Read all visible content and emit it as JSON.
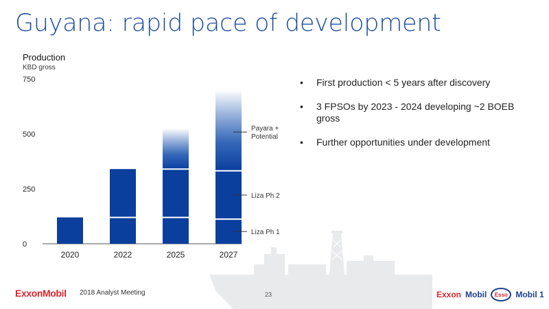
{
  "slide": {
    "title": "Guyana: rapid pace of development",
    "bullets": [
      "First production < 5 years after discovery",
      "3 FPSOs by 2023 - 2024 developing ~2 BOEB gross",
      "Further opportunities under development"
    ],
    "footer": {
      "logo": "ExxonMobil",
      "event": "2018 Analyst Meeting",
      "page": "23"
    },
    "brands": [
      "Exxon",
      "Mobil",
      "Esso",
      "Mobil 1"
    ]
  },
  "colors": {
    "title": "#1d4da0",
    "bar": "#0b3f9e",
    "red": "#d8262e"
  },
  "chart_data": {
    "type": "bar",
    "stacked": true,
    "ylabel": "Production",
    "yunit": "KBD gross",
    "ylim": [
      0,
      750
    ],
    "yticks": [
      0,
      250,
      500,
      750
    ],
    "categories": [
      "2020",
      "2022",
      "2025",
      "2027"
    ],
    "series": [
      {
        "name": "Liza Ph 1",
        "values": [
          120,
          120,
          120,
          112
        ]
      },
      {
        "name": "Liza Ph 2",
        "values": [
          0,
          220,
          220,
          220
        ]
      },
      {
        "name": "Payara + Potential",
        "values": [
          0,
          0,
          185,
          368
        ],
        "gradient": true
      }
    ],
    "grid": false
  }
}
